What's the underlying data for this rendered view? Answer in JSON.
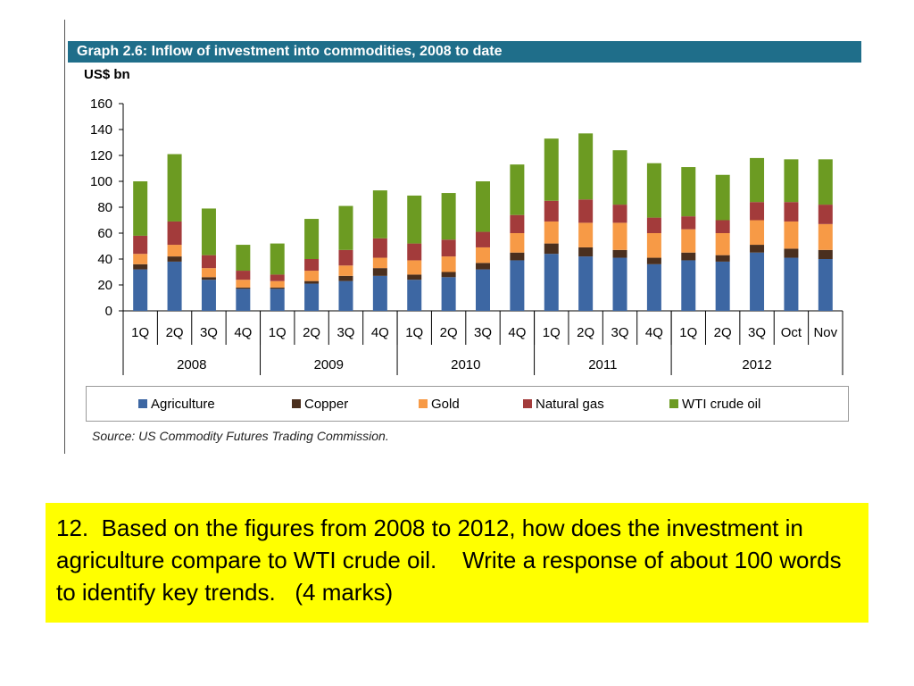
{
  "chart_title": "Graph 2.6: Inflow of investment into commodities, 2008 to date",
  "unit_label": "US$ bn",
  "source": "Source: US Commodity Futures Trading Commission.",
  "question": "12.  Based on the figures from 2008 to 2012, how does the investment in agriculture compare to WTI crude oil.    Write a response of about 100 words to identify key trends.   (4 marks)",
  "colors": {
    "title_bar": "#1f6e8a",
    "question_bg": "#ffff00",
    "agriculture": "#3d67a3",
    "copper": "#4a2f1e",
    "gold": "#f79a46",
    "natural_gas": "#a33b3b",
    "wti": "#6c9b22"
  },
  "chart_data": {
    "type": "bar",
    "stacked": true,
    "title": "Graph 2.6: Inflow of investment into commodities, 2008 to date",
    "ylabel": "US$ bn",
    "ylim": [
      0,
      160
    ],
    "yticks": [
      0,
      20,
      40,
      60,
      80,
      100,
      120,
      140,
      160
    ],
    "grid": false,
    "legend_position": "bottom",
    "categories": [
      "1Q",
      "2Q",
      "3Q",
      "4Q",
      "1Q",
      "2Q",
      "3Q",
      "4Q",
      "1Q",
      "2Q",
      "3Q",
      "4Q",
      "1Q",
      "2Q",
      "3Q",
      "4Q",
      "1Q",
      "2Q",
      "3Q",
      "Oct",
      "Nov"
    ],
    "groups": [
      {
        "label": "2008",
        "count": 4
      },
      {
        "label": "2009",
        "count": 4
      },
      {
        "label": "2010",
        "count": 4
      },
      {
        "label": "2011",
        "count": 4
      },
      {
        "label": "2012",
        "count": 5
      }
    ],
    "series": [
      {
        "name": "Agriculture",
        "color": "#3d67a3",
        "values": [
          32,
          38,
          24,
          17,
          17,
          21,
          23,
          27,
          24,
          26,
          32,
          39,
          44,
          42,
          41,
          36,
          39,
          38,
          45,
          41,
          40
        ]
      },
      {
        "name": "Copper",
        "color": "#4a2f1e",
        "values": [
          4,
          4,
          2,
          1,
          1,
          2,
          4,
          6,
          4,
          4,
          5,
          6,
          8,
          7,
          6,
          5,
          6,
          5,
          6,
          7,
          7
        ]
      },
      {
        "name": "Gold",
        "color": "#f79a46",
        "values": [
          8,
          9,
          7,
          6,
          5,
          8,
          8,
          8,
          11,
          12,
          12,
          15,
          17,
          19,
          21,
          19,
          18,
          17,
          19,
          21,
          20
        ]
      },
      {
        "name": "Natural gas",
        "color": "#a33b3b",
        "values": [
          14,
          18,
          10,
          7,
          5,
          9,
          12,
          15,
          13,
          13,
          12,
          14,
          16,
          18,
          14,
          12,
          10,
          10,
          14,
          15,
          15
        ]
      },
      {
        "name": "WTI crude oil",
        "color": "#6c9b22",
        "values": [
          42,
          52,
          36,
          20,
          24,
          31,
          34,
          37,
          37,
          36,
          39,
          39,
          48,
          51,
          42,
          42,
          38,
          35,
          34,
          33,
          35
        ]
      }
    ]
  }
}
